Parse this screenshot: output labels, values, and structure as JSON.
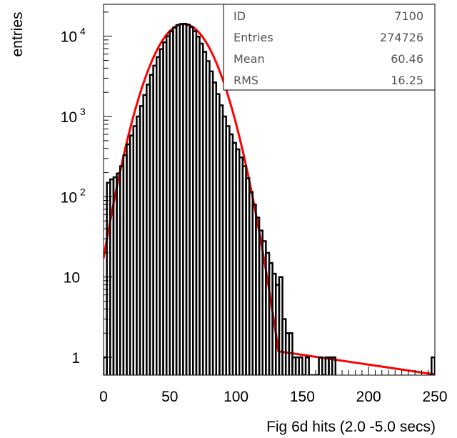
{
  "chart_data": {
    "type": "histogram",
    "x_axis": {
      "label": "Fig 6d   hits (2.0 -5.0 secs)",
      "range": [
        0,
        250
      ],
      "ticks": [
        "0",
        "50",
        "100",
        "150",
        "200",
        "250"
      ]
    },
    "y_axis": {
      "label": "entries",
      "scale": "log",
      "range": [
        0.6,
        25000
      ],
      "ticks": [
        {
          "base": "1",
          "exp": ""
        },
        {
          "base": "10",
          "exp": ""
        },
        {
          "base": "10",
          "exp": "2"
        },
        {
          "base": "10",
          "exp": "3"
        },
        {
          "base": "10",
          "exp": "4"
        }
      ]
    },
    "stats_box": [
      {
        "label": "ID",
        "value": "7100"
      },
      {
        "label": "Entries",
        "value": "274726"
      },
      {
        "label": "Mean",
        "value": "60.46"
      },
      {
        "label": "RMS",
        "value": "16.25"
      }
    ],
    "histogram": {
      "color": "#000000",
      "bin_width": 2.5,
      "bins": [
        {
          "x": 0,
          "y": 1
        },
        {
          "x": 2.5,
          "y": 150
        },
        {
          "x": 5,
          "y": 165
        },
        {
          "x": 7.5,
          "y": 175
        },
        {
          "x": 10,
          "y": 195
        },
        {
          "x": 12.5,
          "y": 240
        },
        {
          "x": 15,
          "y": 330
        },
        {
          "x": 17.5,
          "y": 450
        },
        {
          "x": 20,
          "y": 580
        },
        {
          "x": 22.5,
          "y": 760
        },
        {
          "x": 25,
          "y": 1000
        },
        {
          "x": 27.5,
          "y": 1350
        },
        {
          "x": 30,
          "y": 1850
        },
        {
          "x": 32.5,
          "y": 2500
        },
        {
          "x": 35,
          "y": 3300
        },
        {
          "x": 37.5,
          "y": 4300
        },
        {
          "x": 40,
          "y": 5500
        },
        {
          "x": 42.5,
          "y": 6900
        },
        {
          "x": 45,
          "y": 8400
        },
        {
          "x": 47.5,
          "y": 10000
        },
        {
          "x": 50,
          "y": 11500
        },
        {
          "x": 52.5,
          "y": 12800
        },
        {
          "x": 55,
          "y": 13800
        },
        {
          "x": 57.5,
          "y": 14200
        },
        {
          "x": 60,
          "y": 14300
        },
        {
          "x": 62.5,
          "y": 13900
        },
        {
          "x": 65,
          "y": 13000
        },
        {
          "x": 67.5,
          "y": 11600
        },
        {
          "x": 70,
          "y": 9900
        },
        {
          "x": 72.5,
          "y": 8100
        },
        {
          "x": 75,
          "y": 6400
        },
        {
          "x": 77.5,
          "y": 4900
        },
        {
          "x": 80,
          "y": 3650
        },
        {
          "x": 82.5,
          "y": 2650
        },
        {
          "x": 85,
          "y": 1900
        },
        {
          "x": 87.5,
          "y": 1380
        },
        {
          "x": 90,
          "y": 1000
        },
        {
          "x": 92.5,
          "y": 760
        },
        {
          "x": 95,
          "y": 600
        },
        {
          "x": 97.5,
          "y": 470
        },
        {
          "x": 100,
          "y": 390
        },
        {
          "x": 102.5,
          "y": 310
        },
        {
          "x": 105,
          "y": 240
        },
        {
          "x": 107.5,
          "y": 170
        },
        {
          "x": 110,
          "y": 115
        },
        {
          "x": 112.5,
          "y": 80
        },
        {
          "x": 115,
          "y": 55
        },
        {
          "x": 117.5,
          "y": 38
        },
        {
          "x": 120,
          "y": 28
        },
        {
          "x": 122.5,
          "y": 20
        },
        {
          "x": 125,
          "y": 15
        },
        {
          "x": 127.5,
          "y": 11
        },
        {
          "x": 130,
          "y": 8
        },
        {
          "x": 132.5,
          "y": 10
        },
        {
          "x": 135,
          "y": 3
        },
        {
          "x": 137.5,
          "y": 2
        },
        {
          "x": 140,
          "y": 2
        },
        {
          "x": 142.5,
          "y": 1
        },
        {
          "x": 145,
          "y": 1
        },
        {
          "x": 147.5,
          "y": 1
        },
        {
          "x": 150,
          "y": 0
        },
        {
          "x": 152.5,
          "y": 1
        },
        {
          "x": 155,
          "y": 0
        },
        {
          "x": 157.5,
          "y": 0
        },
        {
          "x": 160,
          "y": 0
        },
        {
          "x": 162.5,
          "y": 1
        },
        {
          "x": 165,
          "y": 0
        },
        {
          "x": 167.5,
          "y": 1
        },
        {
          "x": 170,
          "y": 1
        },
        {
          "x": 172.5,
          "y": 1
        },
        {
          "x": 247.5,
          "y": 1
        }
      ]
    },
    "fit": {
      "type": "gaussian",
      "color": "#ff0000",
      "amplitude": 14200,
      "mean": 60.5,
      "sigma": 16.5,
      "x_range": [
        0,
        132
      ]
    }
  }
}
